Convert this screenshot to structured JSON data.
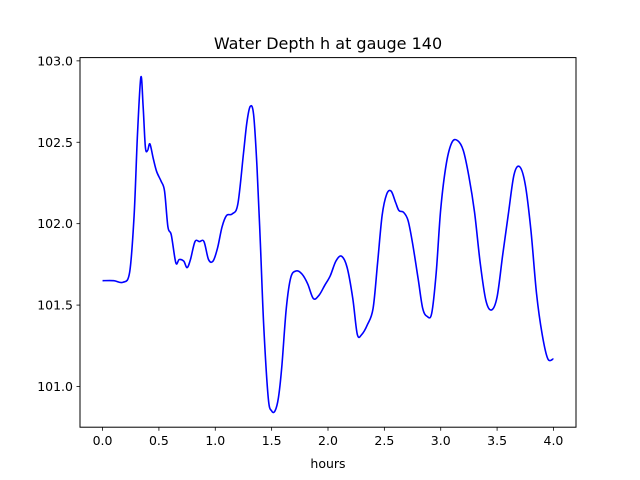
{
  "chart_data": {
    "type": "line",
    "title": "Water Depth h at gauge 140",
    "xlabel": "hours",
    "ylabel": "",
    "xlim": [
      -0.2,
      4.2
    ],
    "ylim": [
      100.75,
      103.02
    ],
    "xticks": [
      0.0,
      0.5,
      1.0,
      1.5,
      2.0,
      2.5,
      3.0,
      3.5,
      4.0
    ],
    "xtick_labels": [
      "0.0",
      "0.5",
      "1.0",
      "1.5",
      "2.0",
      "2.5",
      "3.0",
      "3.5",
      "4.0"
    ],
    "yticks": [
      101.0,
      101.5,
      102.0,
      102.5,
      103.0
    ],
    "ytick_labels": [
      "101.0",
      "101.5",
      "102.0",
      "102.5",
      "103.0"
    ],
    "grid": false,
    "series": [
      {
        "color": "#0000ff",
        "x": [
          0.0,
          0.1,
          0.18,
          0.24,
          0.28,
          0.31,
          0.34,
          0.36,
          0.38,
          0.4,
          0.42,
          0.45,
          0.48,
          0.52,
          0.55,
          0.58,
          0.61,
          0.65,
          0.68,
          0.72,
          0.75,
          0.78,
          0.82,
          0.86,
          0.9,
          0.94,
          0.98,
          1.02,
          1.06,
          1.1,
          1.15,
          1.2,
          1.25,
          1.28,
          1.31,
          1.34,
          1.37,
          1.4,
          1.43,
          1.47,
          1.5,
          1.53,
          1.56,
          1.59,
          1.63,
          1.67,
          1.72,
          1.77,
          1.82,
          1.87,
          1.92,
          1.97,
          2.02,
          2.07,
          2.12,
          2.17,
          2.22,
          2.26,
          2.3,
          2.35,
          2.4,
          2.44,
          2.48,
          2.52,
          2.56,
          2.6,
          2.63,
          2.67,
          2.71,
          2.75,
          2.8,
          2.84,
          2.88,
          2.92,
          2.96,
          3.0,
          3.05,
          3.1,
          3.15,
          3.2,
          3.25,
          3.3,
          3.35,
          3.4,
          3.45,
          3.5,
          3.55,
          3.6,
          3.65,
          3.7,
          3.75,
          3.8,
          3.85,
          3.9,
          3.95,
          4.0
        ],
        "y": [
          101.65,
          101.65,
          101.64,
          101.7,
          102.05,
          102.55,
          102.9,
          102.72,
          102.47,
          102.45,
          102.49,
          102.4,
          102.32,
          102.26,
          102.2,
          101.98,
          101.93,
          101.76,
          101.78,
          101.77,
          101.73,
          101.78,
          101.89,
          101.89,
          101.89,
          101.78,
          101.77,
          101.85,
          101.98,
          102.05,
          102.06,
          102.12,
          102.43,
          102.62,
          102.72,
          102.67,
          102.35,
          101.88,
          101.37,
          100.93,
          100.85,
          100.85,
          100.93,
          101.12,
          101.48,
          101.67,
          101.71,
          101.69,
          101.63,
          101.54,
          101.56,
          101.62,
          101.68,
          101.77,
          101.8,
          101.73,
          101.54,
          101.32,
          101.32,
          101.38,
          101.48,
          101.76,
          102.05,
          102.18,
          102.2,
          102.13,
          102.08,
          102.07,
          102.02,
          101.88,
          101.66,
          101.48,
          101.43,
          101.45,
          101.7,
          102.09,
          102.37,
          102.5,
          102.51,
          102.45,
          102.29,
          102.07,
          101.76,
          101.53,
          101.47,
          101.55,
          101.81,
          102.06,
          102.3,
          102.35,
          102.24,
          101.96,
          101.57,
          101.32,
          101.17,
          101.17
        ]
      }
    ]
  }
}
